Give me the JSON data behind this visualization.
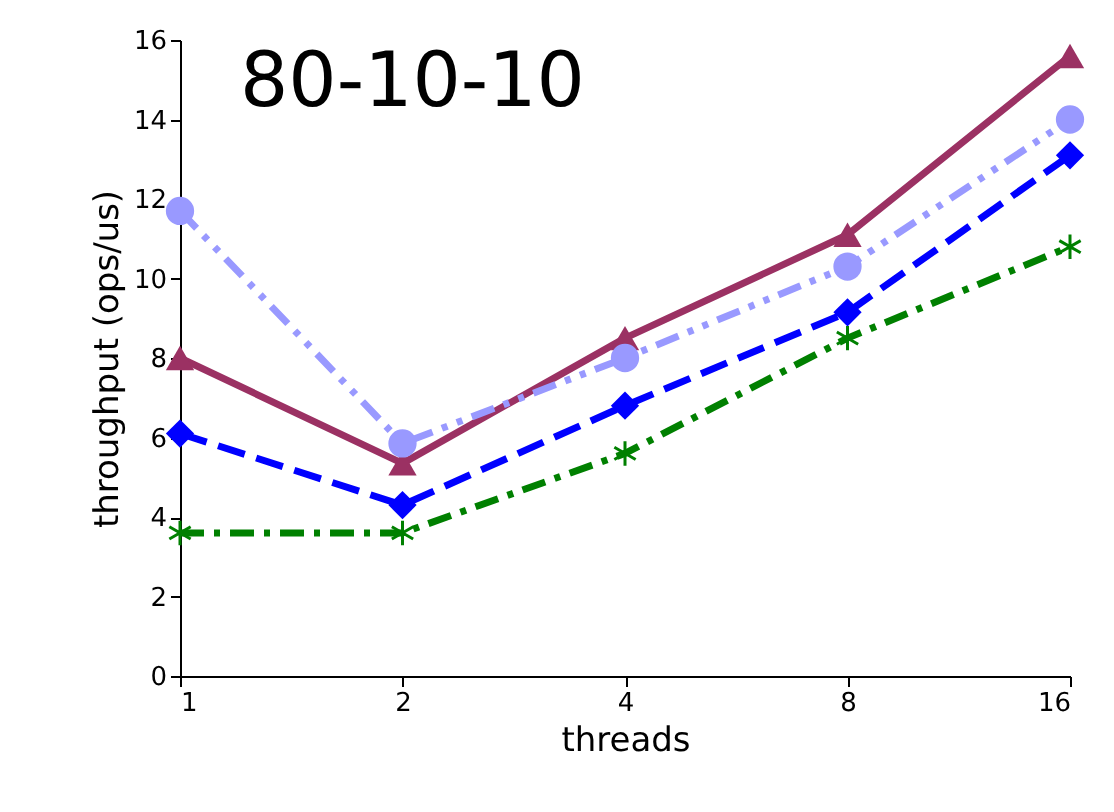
{
  "chart_data": {
    "type": "line",
    "title": "80-10-10",
    "xlabel": "threads",
    "ylabel": "throughput (ops/us)",
    "categories": [
      "1",
      "2",
      "4",
      "8",
      "16"
    ],
    "ylim": [
      0,
      16
    ],
    "yticks": [
      0,
      2,
      4,
      6,
      8,
      10,
      12,
      14,
      16
    ],
    "grid": false,
    "series": [
      {
        "color": "#9b3163",
        "marker": "triangle",
        "line_style": "solid",
        "values": [
          8.0,
          5.35,
          8.5,
          11.1,
          15.6
        ]
      },
      {
        "color": "#9999ff",
        "marker": "circle",
        "line_style": "dashdotdot",
        "values": [
          11.7,
          5.85,
          8.0,
          10.3,
          14.0
        ]
      },
      {
        "color": "#0000ff",
        "marker": "diamond",
        "line_style": "dashed",
        "values": [
          6.1,
          4.3,
          6.8,
          9.15,
          13.1
        ]
      },
      {
        "color": "#008000",
        "marker": "cross",
        "line_style": "dashdot",
        "values": [
          3.6,
          3.6,
          5.6,
          8.5,
          10.8
        ]
      }
    ]
  }
}
